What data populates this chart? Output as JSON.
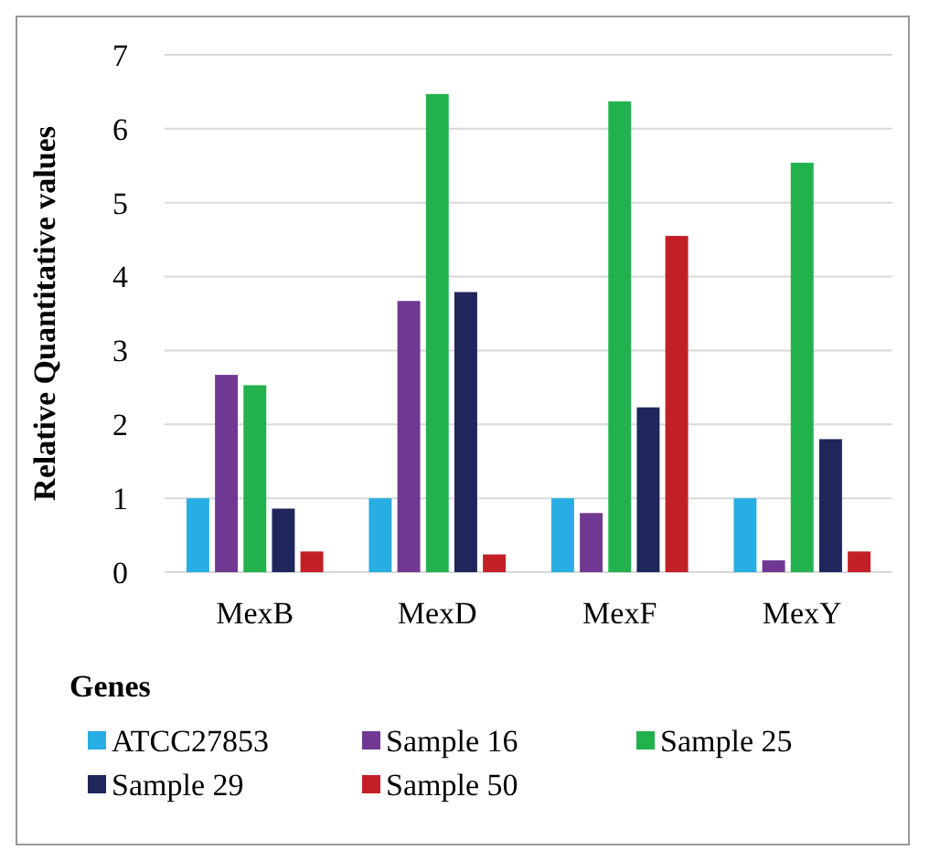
{
  "chart_data": {
    "type": "bar",
    "ylabel": "Relative Quantitative values",
    "legend_title": "Genes",
    "categories": [
      "MexB",
      "MexD",
      "MexF",
      "MexY"
    ],
    "series": [
      {
        "name": "ATCC27853",
        "color": "#29aee3",
        "values": [
          1,
          1,
          1,
          1
        ]
      },
      {
        "name": "Sample 16",
        "color": "#703893",
        "values": [
          2.67,
          3.67,
          0.8,
          0.16
        ]
      },
      {
        "name": "Sample 25",
        "color": "#21b24d",
        "values": [
          2.53,
          6.47,
          6.37,
          5.54
        ]
      },
      {
        "name": "Sample 29",
        "color": "#1f265c",
        "values": [
          0.86,
          3.79,
          2.23,
          1.8
        ]
      },
      {
        "name": "Sample 50",
        "color": "#c31f27",
        "values": [
          0.28,
          0.24,
          4.55,
          0.28
        ]
      }
    ],
    "ylim": [
      0,
      7
    ],
    "yticks": [
      0,
      1,
      2,
      3,
      4,
      5,
      6,
      7
    ],
    "grid": "y",
    "legend": "bottom"
  }
}
